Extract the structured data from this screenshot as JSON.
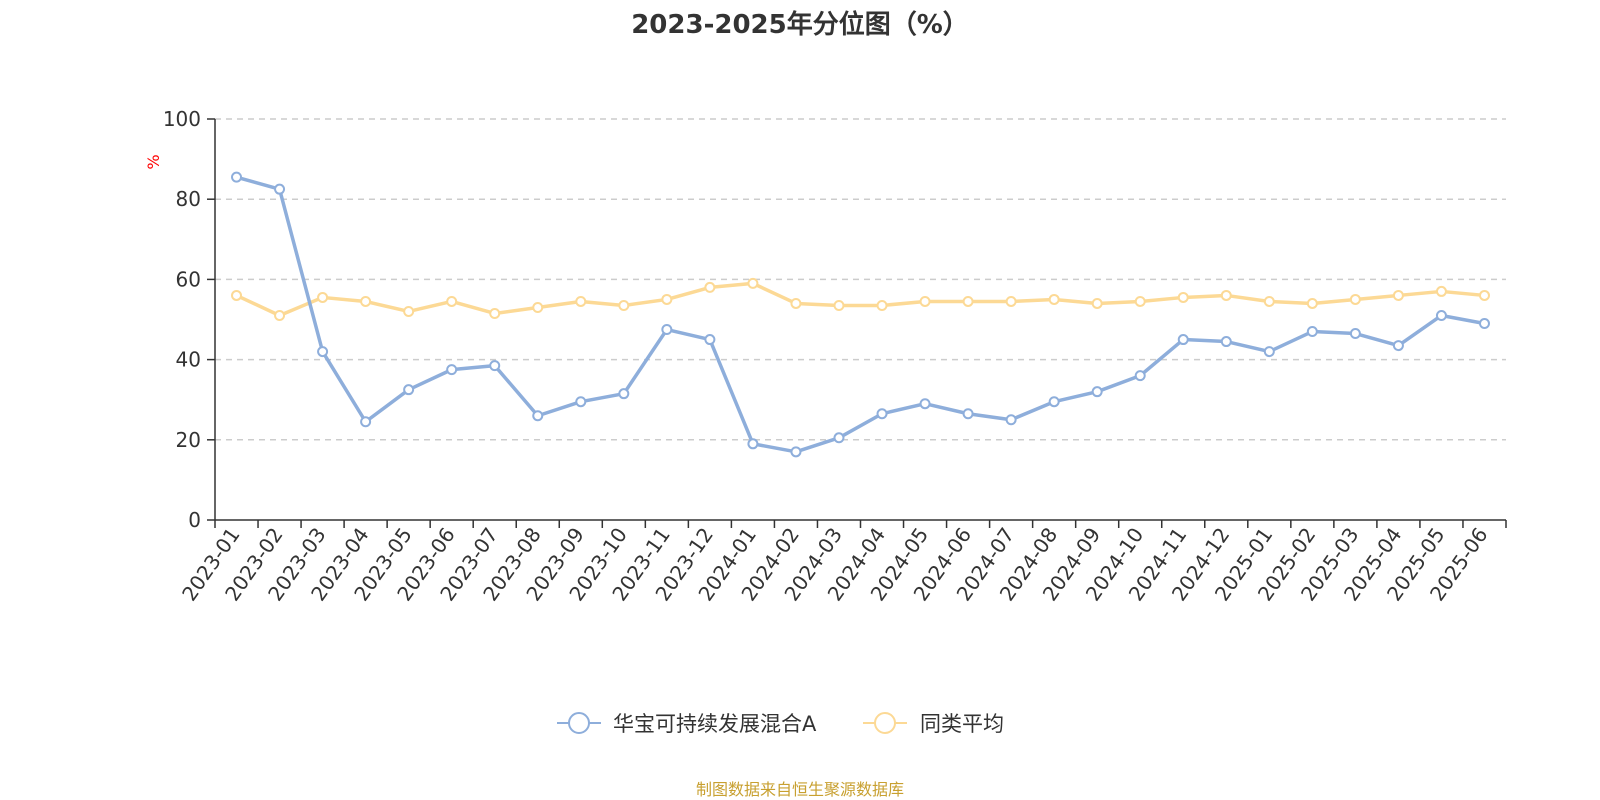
{
  "chart_data": {
    "type": "line",
    "title": "2023-2025年分位图（%）",
    "ylabel": "%",
    "xlabel": "",
    "ylim": [
      0,
      100
    ],
    "yticks": [
      0,
      20,
      40,
      60,
      80,
      100
    ],
    "grid": true,
    "legend_position": "bottom",
    "categories": [
      "2023-01",
      "2023-02",
      "2023-03",
      "2023-04",
      "2023-05",
      "2023-06",
      "2023-07",
      "2023-08",
      "2023-09",
      "2023-10",
      "2023-11",
      "2023-12",
      "2024-01",
      "2024-02",
      "2024-03",
      "2024-04",
      "2024-05",
      "2024-06",
      "2024-07",
      "2024-08",
      "2024-09",
      "2024-10",
      "2024-11",
      "2024-12",
      "2025-01",
      "2025-02",
      "2025-03",
      "2025-04",
      "2025-05",
      "2025-06"
    ],
    "series": [
      {
        "name": "华宝可持续发展混合A",
        "color": "#8eaedb",
        "values": [
          85.5,
          82.5,
          42,
          24.5,
          32.5,
          37.5,
          38.5,
          26,
          29.5,
          31.5,
          47.5,
          45,
          19,
          17,
          20.5,
          26.5,
          29,
          26.5,
          25,
          29.5,
          32,
          36,
          45,
          44.5,
          42,
          47,
          46.5,
          43.5,
          51,
          49
        ]
      },
      {
        "name": "同类平均",
        "color": "#fcd995",
        "values": [
          56,
          51,
          55.5,
          54.5,
          52,
          54.5,
          51.5,
          53,
          54.5,
          53.5,
          55,
          58,
          59,
          54,
          53.5,
          53.5,
          54.5,
          54.5,
          54.5,
          55,
          54,
          54.5,
          55.5,
          56,
          54.5,
          54,
          55,
          56,
          57,
          56
        ]
      }
    ],
    "colors": {
      "axis": "#333333",
      "grid": "#cccccc",
      "ylabel": "#ff0000",
      "source": "#c8a030"
    }
  },
  "source_text": "制图数据来自恒生聚源数据库"
}
